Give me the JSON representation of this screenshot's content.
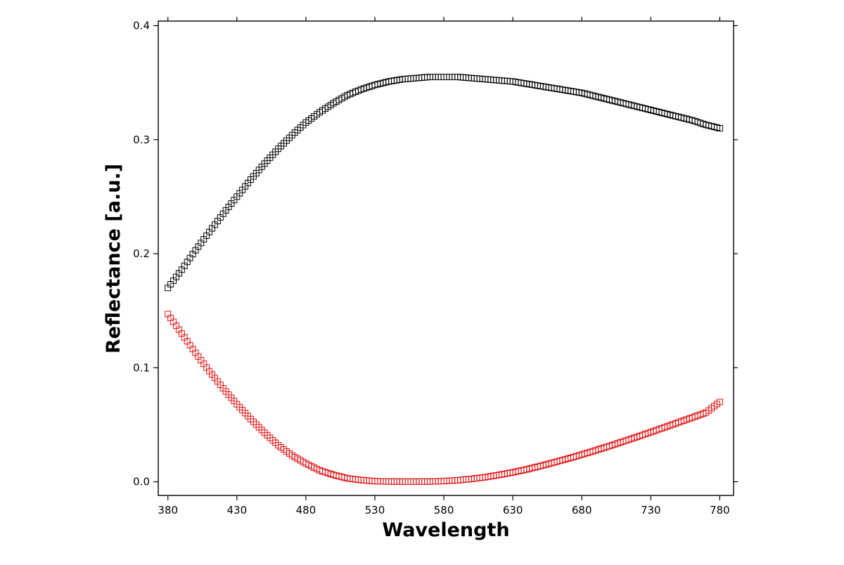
{
  "chart_data": {
    "type": "scatter",
    "title": "",
    "xlabel": "Wavelength",
    "ylabel": "Reflectance [a.u.]",
    "xlim": [
      373,
      790
    ],
    "ylim": [
      -0.012,
      0.404
    ],
    "x_ticks": [
      380,
      430,
      480,
      530,
      580,
      630,
      680,
      730,
      780
    ],
    "y_ticks": [
      0.0,
      0.1,
      0.2,
      0.3,
      0.4
    ],
    "x_tick_labels": [
      "380",
      "430",
      "480",
      "530",
      "580",
      "630",
      "680",
      "730",
      "780"
    ],
    "y_tick_labels": [
      "0.0",
      "0.1",
      "0.2",
      "0.3",
      "0.4"
    ],
    "grid": false,
    "legend": "none",
    "marker": "open-square",
    "series": [
      {
        "color": "#000000",
        "x": [
          380,
          390,
          400,
          410,
          420,
          430,
          440,
          450,
          460,
          470,
          480,
          490,
          500,
          510,
          520,
          530,
          540,
          550,
          560,
          570,
          580,
          590,
          600,
          610,
          620,
          630,
          640,
          650,
          660,
          670,
          680,
          690,
          700,
          710,
          720,
          730,
          740,
          750,
          760,
          770,
          780
        ],
        "y": [
          0.17,
          0.186,
          0.203,
          0.219,
          0.235,
          0.25,
          0.265,
          0.279,
          0.292,
          0.304,
          0.315,
          0.324,
          0.332,
          0.339,
          0.344,
          0.348,
          0.351,
          0.353,
          0.354,
          0.355,
          0.355,
          0.355,
          0.354,
          0.353,
          0.352,
          0.351,
          0.349,
          0.347,
          0.345,
          0.343,
          0.341,
          0.338,
          0.335,
          0.332,
          0.329,
          0.326,
          0.323,
          0.32,
          0.317,
          0.313,
          0.31
        ]
      },
      {
        "color": "#e01010",
        "x": [
          380,
          390,
          400,
          410,
          420,
          430,
          440,
          450,
          460,
          470,
          480,
          490,
          500,
          510,
          520,
          530,
          540,
          550,
          560,
          570,
          580,
          590,
          600,
          610,
          620,
          630,
          640,
          650,
          660,
          670,
          680,
          690,
          700,
          710,
          720,
          730,
          740,
          750,
          760,
          770,
          780
        ],
        "y": [
          0.147,
          0.13,
          0.113,
          0.097,
          0.082,
          0.068,
          0.055,
          0.043,
          0.032,
          0.023,
          0.016,
          0.01,
          0.006,
          0.003,
          0.0015,
          0.0005,
          0.0002,
          0.0001,
          0.0001,
          0.0002,
          0.0006,
          0.0013,
          0.0025,
          0.004,
          0.006,
          0.0082,
          0.0108,
          0.0138,
          0.017,
          0.0203,
          0.0238,
          0.0275,
          0.0313,
          0.0353,
          0.0393,
          0.0435,
          0.0477,
          0.052,
          0.0563,
          0.0606,
          0.07
        ]
      }
    ]
  }
}
